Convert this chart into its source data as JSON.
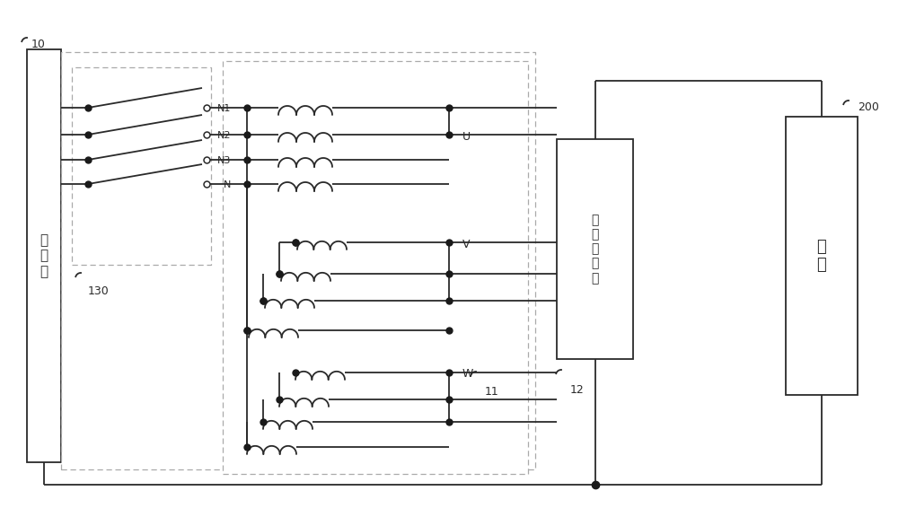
{
  "bg_color": "#ffffff",
  "line_color": "#2a2a2a",
  "dot_color": "#1a1a1a",
  "fig_width": 10.0,
  "fig_height": 5.76,
  "labels": {
    "charge_port": "充\n电\n口",
    "battery": "电\n池",
    "bridge": "桥\n臂\n变\n换\n器",
    "label_10": "10",
    "label_200": "200",
    "label_12": "12",
    "label_11": "11",
    "label_130": "130",
    "N1": "N1",
    "N2": "N2",
    "N3": "N3",
    "N": "N",
    "U": "U",
    "V": "V",
    "W": "W"
  }
}
